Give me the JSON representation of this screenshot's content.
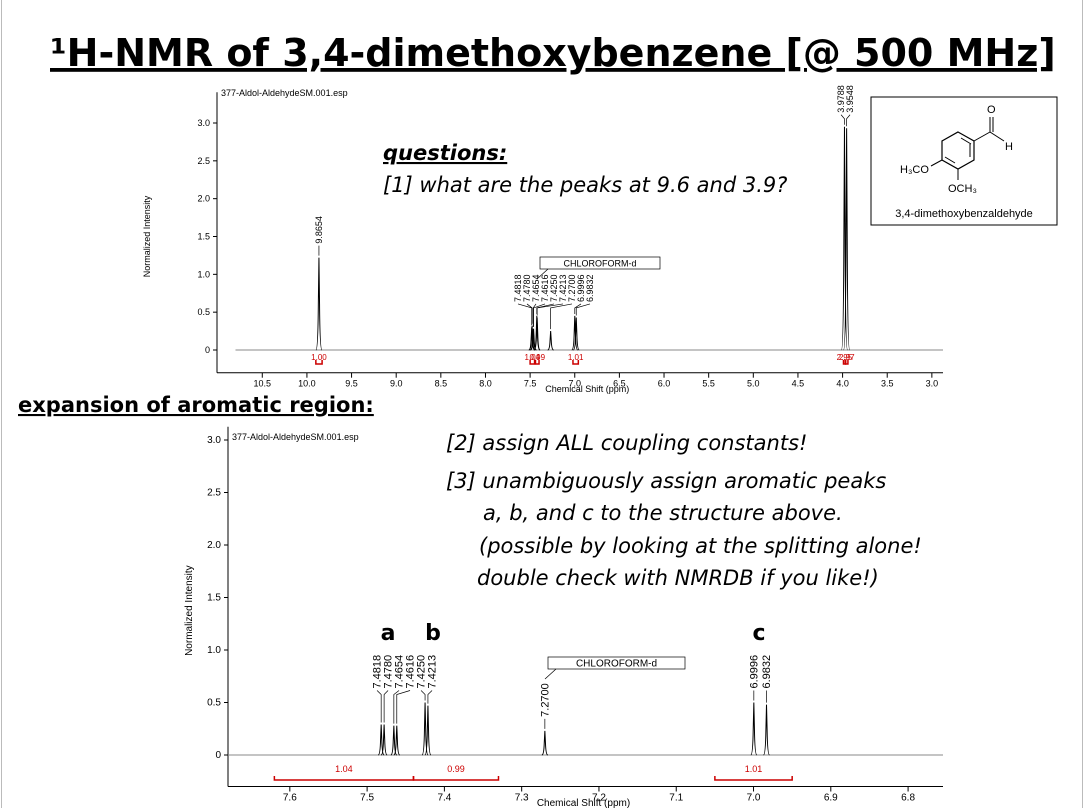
{
  "slide_title": "¹H-NMR of 3,4-dimethoxybenzene [@ 500 MHz]",
  "expansion_heading": "expansion of aromatic region:",
  "questions": {
    "heading": "questions:",
    "items": [
      "[1] what are the peaks at 9.6 and 3.9?"
    ]
  },
  "tasks": [
    "[2] assign ALL coupling constants!",
    "[3] unambiguously assign aromatic peaks",
    "a, b, and c to the structure above.",
    "(possible by looking at the splitting alone!",
    "double check with NMRDB if you like!)"
  ],
  "structure": {
    "o_label": "O",
    "h_label": "H",
    "left_group": "H₃CO",
    "bottom_group": "OCH₃",
    "name": "3,4-dimethoxybenzaldehyde"
  },
  "chart_data": [
    {
      "type": "spectrum",
      "title": "377-Aldol-AldehydeSM.001.esp",
      "x_label": "Chemical Shift (ppm)",
      "y_label": "Normalized Intensity",
      "xlim": [
        10.8,
        2.92
      ],
      "ylim": [
        -0.3,
        3.3
      ],
      "xticks": [
        10.5,
        {
          "value": 10,
          "label": "10.0"
        },
        9.5,
        {
          "value": 9,
          "label": "9.0"
        },
        8.5,
        {
          "value": 8,
          "label": "8.0"
        },
        7.5,
        {
          "value": 7,
          "label": "7.0"
        },
        6.5,
        {
          "value": 6,
          "label": "6.0"
        },
        5.5,
        {
          "value": 5,
          "label": "5.0"
        },
        4.5,
        {
          "value": 4,
          "label": "4.0"
        },
        3.5,
        {
          "value": 3,
          "label": "3.0"
        }
      ],
      "yticks": [
        0,
        0.5,
        {
          "value": 1,
          "label": "1.0"
        },
        1.5,
        {
          "value": 2,
          "label": "2.0"
        },
        2.5,
        {
          "value": 3,
          "label": "3.0"
        }
      ],
      "color": "#000000",
      "x": [
        9.8654,
        7.4818,
        7.478,
        7.4654,
        7.4616,
        7.425,
        7.4213,
        7.27,
        6.9996,
        6.9832,
        3.9788,
        3.9548
      ],
      "x_labels": [
        "9.8654",
        "7.4818",
        "7.4780",
        "7.4654",
        "7.4616",
        "7.4250",
        "7.4213",
        "7.2700",
        "6.9996",
        "6.9832",
        "3.9788",
        "3.9548"
      ],
      "values": [
        1.22,
        0.3,
        0.32,
        0.28,
        0.28,
        0.45,
        0.43,
        0.25,
        0.45,
        0.43,
        2.95,
        2.93
      ],
      "integrals": {
        "color": "#cc0000",
        "values": [
          1,
          1.04,
          0.99,
          1.01,
          2.95,
          2.97
        ],
        "value_labels": [
          "1.00",
          "1.04",
          "0.99",
          "1.01",
          "2.95",
          "2.97"
        ],
        "ranges": [
          [
            9.9,
            9.83
          ],
          [
            7.5,
            7.45
          ],
          [
            7.44,
            7.4
          ],
          [
            7.02,
            6.96
          ],
          [
            3.99,
            3.97
          ],
          [
            3.965,
            3.94
          ]
        ]
      },
      "annotation": "CHLOROFORM-d"
    },
    {
      "type": "spectrum",
      "title": "377-Aldol-AldehydeSM.001.esp",
      "x_label": "Chemical Shift (ppm)",
      "y_label": "Normalized Intensity",
      "xlim": [
        7.68,
        6.76
      ],
      "ylim": [
        -0.3,
        3.05
      ],
      "xticks": [
        7.6,
        7.5,
        7.4,
        7.3,
        7.2,
        7.1,
        {
          "value": 7,
          "label": "7.0"
        },
        6.9,
        6.8
      ],
      "yticks": [
        0,
        0.5,
        {
          "value": 1,
          "label": "1.0"
        },
        1.5,
        {
          "value": 2,
          "label": "2.0"
        },
        2.5,
        {
          "value": 3,
          "label": "3.0"
        }
      ],
      "color": "#000000",
      "x": [
        7.4818,
        7.478,
        7.4654,
        7.4616,
        7.425,
        7.4213,
        7.27,
        6.9996,
        6.9832
      ],
      "x_labels": [
        "7.4818",
        "7.4780",
        "7.4654",
        "7.4616",
        "7.4250",
        "7.4213",
        "7.2700",
        "6.9996",
        "6.9832"
      ],
      "values": [
        0.29,
        0.29,
        0.28,
        0.28,
        0.5,
        0.47,
        0.23,
        0.5,
        0.48
      ],
      "integrals": {
        "color": "#cc0000",
        "values": [
          1.04,
          0.99,
          1.01
        ],
        "value_labels": [
          "1.04",
          "0.99",
          "1.01"
        ],
        "ranges": [
          [
            7.62,
            7.44
          ],
          [
            7.44,
            7.33
          ],
          [
            7.05,
            6.95
          ]
        ]
      },
      "annotation": "CHLOROFORM-d",
      "assignment_labels": [
        "a",
        "b",
        "c"
      ]
    }
  ]
}
